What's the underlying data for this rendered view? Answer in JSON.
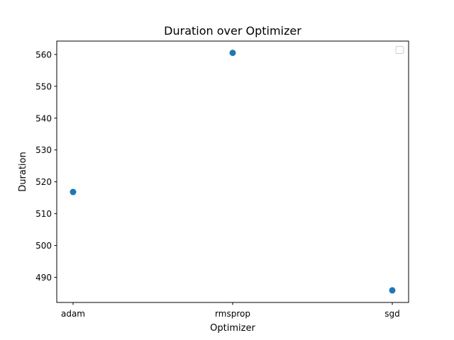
{
  "chart_data": {
    "type": "scatter",
    "title": "Duration over Optimizer",
    "xlabel": "Optimizer",
    "ylabel": "Duration",
    "categories": [
      "adam",
      "rmsprop",
      "sgd"
    ],
    "series": [
      {
        "values": [
          516.8,
          560.5,
          485.9
        ]
      }
    ],
    "yticks": [
      490,
      500,
      510,
      520,
      530,
      540,
      550,
      560
    ],
    "ylim": [
      482.1,
      564.2
    ],
    "grid": false,
    "legend": "top-right, empty",
    "colors": {
      "marker": "#1f77b4",
      "axis": "#000000",
      "legend_border": "#cccccc"
    }
  }
}
